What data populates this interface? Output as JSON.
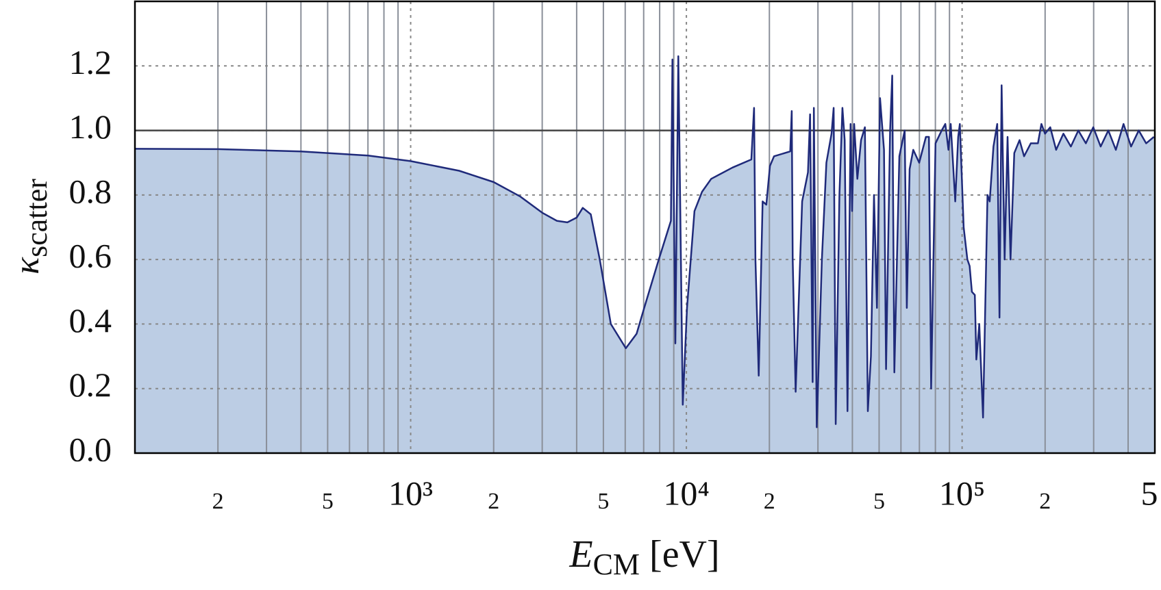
{
  "chart_data": {
    "type": "area",
    "ylabel": "κ",
    "ylabel_sub": "scatter",
    "xlabel": "E",
    "xlabel_sub": "CM",
    "xlabel_unit": "[eV]",
    "log_x": true,
    "xlim": [
      100,
      500000
    ],
    "ylim": [
      0,
      1.4
    ],
    "xticks": [
      {
        "value": 200,
        "label": "2"
      },
      {
        "value": 500,
        "label": "5"
      },
      {
        "value": 1000,
        "label": "10³"
      },
      {
        "value": 2000,
        "label": "2"
      },
      {
        "value": 5000,
        "label": "5"
      },
      {
        "value": 10000,
        "label": "10⁴"
      },
      {
        "value": 20000,
        "label": "2"
      },
      {
        "value": 50000,
        "label": "5"
      },
      {
        "value": 100000,
        "label": "10⁵"
      },
      {
        "value": 200000,
        "label": "2"
      },
      {
        "value": 500000,
        "label": "5"
      }
    ],
    "xminor": [
      200,
      300,
      400,
      500,
      600,
      700,
      800,
      900,
      2000,
      3000,
      4000,
      5000,
      6000,
      7000,
      8000,
      9000,
      20000,
      30000,
      40000,
      50000,
      60000,
      70000,
      80000,
      90000,
      200000,
      300000,
      400000
    ],
    "yticks": [
      {
        "value": 0,
        "label": "0.0"
      },
      0.2,
      0.4,
      0.6,
      0.8,
      {
        "value": 1,
        "label": "1.0"
      },
      1.2
    ],
    "hline": 1,
    "grid": true,
    "line_color": "#1f2a7a",
    "fill_color": "#bccde4",
    "x": [
      100,
      200,
      400,
      700,
      1000,
      1500,
      2000,
      2500,
      3000,
      3390,
      3700,
      4000,
      4210,
      4500,
      4850,
      5320,
      6030,
      6600,
      7030,
      7940,
      8790,
      8900,
      9120,
      9350,
      9700,
      10050,
      10700,
      11400,
      12300,
      14700,
      17200,
      17600,
      17800,
      18300,
      18900,
      19500,
      20100,
      20800,
      23800,
      24100,
      24300,
      24900,
      26300,
      27600,
      28100,
      28700,
      29000,
      29700,
      31000,
      32200,
      33600,
      34200,
      34800,
      35900,
      36800,
      37500,
      38400,
      39400,
      39900,
      40600,
      41700,
      43000,
      44400,
      45500,
      46700,
      47900,
      49100,
      50400,
      52100,
      53000,
      54800,
      55800,
      56800,
      59200,
      61900,
      63000,
      64500,
      66500,
      69900,
      73900,
      75800,
      77200,
      80100,
      84300,
      86900,
      89200,
      90900,
      94400,
      96800,
      98100,
      101300,
      104500,
      106500,
      108500,
      111200,
      112600,
      115400,
      119100,
      123600,
      125900,
      129900,
      134100,
      136600,
      139100,
      142600,
      146200,
      149800,
      154600,
      161600,
      167800,
      177500,
      188300,
      193900,
      199900,
      208800,
      219300,
      233000,
      248000,
      264000,
      281000,
      299000,
      318000,
      339000,
      361000,
      385000,
      410000,
      437000,
      465000,
      496000
    ],
    "values": [
      0.943,
      0.942,
      0.935,
      0.922,
      0.905,
      0.875,
      0.84,
      0.795,
      0.745,
      0.72,
      0.715,
      0.73,
      0.76,
      0.74,
      0.6,
      0.4,
      0.325,
      0.37,
      0.45,
      0.6,
      0.72,
      1.22,
      0.34,
      1.23,
      0.15,
      0.45,
      0.75,
      0.81,
      0.85,
      0.885,
      0.91,
      1.07,
      0.6,
      0.24,
      0.78,
      0.77,
      0.89,
      0.92,
      0.935,
      1.06,
      0.6,
      0.19,
      0.78,
      0.87,
      1.05,
      0.22,
      1.07,
      0.08,
      0.6,
      0.9,
      0.99,
      1.07,
      0.09,
      0.8,
      1.07,
      0.97,
      0.13,
      1.02,
      0.75,
      1.02,
      0.85,
      0.97,
      1.01,
      0.13,
      0.3,
      0.8,
      0.45,
      1.1,
      0.94,
      0.26,
      1.0,
      1.17,
      0.25,
      0.92,
      1.0,
      0.45,
      0.88,
      0.94,
      0.9,
      0.98,
      0.98,
      0.2,
      0.96,
      1.0,
      1.02,
      0.94,
      1.02,
      0.78,
      0.98,
      1.02,
      0.7,
      0.6,
      0.58,
      0.5,
      0.49,
      0.29,
      0.4,
      0.11,
      0.8,
      0.78,
      0.95,
      1.02,
      0.42,
      1.14,
      0.6,
      0.98,
      0.6,
      0.93,
      0.97,
      0.92,
      0.96,
      0.96,
      1.02,
      0.99,
      1.01,
      0.94,
      0.99,
      0.95,
      1.0,
      0.96,
      1.01,
      0.95,
      1.0,
      0.94,
      1.02,
      0.95,
      1.0,
      0.96,
      0.98
    ]
  }
}
